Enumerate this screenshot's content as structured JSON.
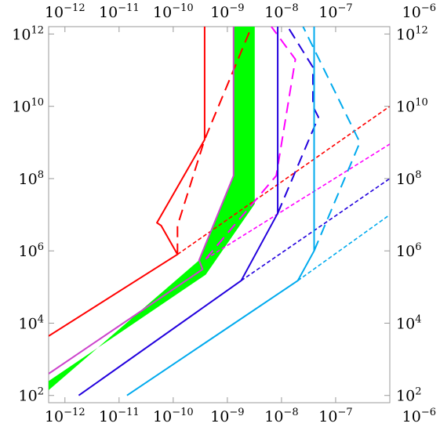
{
  "chart_data": {
    "type": "line",
    "title": "",
    "xlabel": "",
    "ylabel": "",
    "x_scale": "log",
    "y_scale": "log",
    "xlim": [
      5e-13,
      1e-06
    ],
    "ylim": [
      63,
      1600000000000.0
    ],
    "grid": false,
    "legend": "none",
    "x_ticks": [
      {
        "value": 1e-12,
        "base": "10",
        "exp": "−12"
      },
      {
        "value": 1e-11,
        "base": "10",
        "exp": "−11"
      },
      {
        "value": 1e-10,
        "base": "10",
        "exp": "−10"
      },
      {
        "value": 1e-09,
        "base": "10",
        "exp": "−9"
      },
      {
        "value": 1e-08,
        "base": "10",
        "exp": "−8"
      },
      {
        "value": 1e-07,
        "base": "10",
        "exp": "−7"
      },
      {
        "value": 1e-06,
        "base": "10",
        "exp": "−6"
      }
    ],
    "y_ticks": [
      {
        "value": 100.0,
        "base": "10",
        "exp": "2"
      },
      {
        "value": 10000.0,
        "base": "10",
        "exp": "4"
      },
      {
        "value": 1000000.0,
        "base": "10",
        "exp": "6"
      },
      {
        "value": 100000000.0,
        "base": "10",
        "exp": "8"
      },
      {
        "value": 10000000000.0,
        "base": "10",
        "exp": "10"
      },
      {
        "value": 1000000000000.0,
        "base": "10",
        "exp": "12"
      }
    ],
    "bands": [
      {
        "color": "#00ff00",
        "points": [
          [
            5e-13,
            250
          ],
          [
            4e-10,
            220000.0
          ],
          [
            3.2e-09,
            20000000.0
          ],
          [
            3.2e-09,
            1600000000000.0
          ],
          [
            1.3e-09,
            1600000000000.0
          ],
          [
            1.3e-09,
            120000000.0
          ],
          [
            3e-10,
            550000.0
          ],
          [
            5e-13,
            140
          ]
        ]
      }
    ],
    "series": [
      {
        "color": "#ff0000",
        "style": "solid",
        "points": [
          [
            5e-13,
            4400.0
          ],
          [
            1.2e-10,
            800000.0
          ],
          [
            6e-11,
            5000000.0
          ],
          [
            5e-11,
            6000000.0
          ],
          [
            3.8e-10,
            1200000000.0
          ],
          [
            3.8e-10,
            1600000000000.0
          ]
        ]
      },
      {
        "color": "#ff0000",
        "style": "dashed",
        "points": [
          [
            1.2e-10,
            800000.0
          ],
          [
            1.2e-10,
            5000000.0
          ],
          [
            3.8e-10,
            1200000000.0
          ],
          [
            2.8e-09,
            1600000000000.0
          ]
        ]
      },
      {
        "color": "#ff0000",
        "style": "dotted",
        "points": [
          [
            1.2e-10,
            800000.0
          ],
          [
            1e-06,
            10000000000.0
          ]
        ]
      },
      {
        "color": "#cc44cc",
        "style": "solid",
        "points": [
          [
            5e-13,
            400
          ],
          [
            3.5e-10,
            310000.0
          ],
          [
            3e-10,
            550000.0
          ],
          [
            1.3e-09,
            120000000.0
          ],
          [
            1.3e-09,
            1600000000000.0
          ]
        ]
      },
      {
        "color": "#ff00ff",
        "style": "dashed",
        "points": [
          [
            4e-10,
            600000.0
          ],
          [
            8e-09,
            120000000.0
          ],
          [
            1.8e-08,
            200000000000.0
          ],
          [
            6.5e-09,
            1600000000000.0
          ]
        ]
      },
      {
        "color": "#ff00ff",
        "style": "dotted",
        "points": [
          [
            4e-10,
            600000.0
          ],
          [
            1e-06,
            900000000.0
          ]
        ]
      },
      {
        "color": "#2200dd",
        "style": "solid",
        "points": [
          [
            1.8e-12,
            100
          ],
          [
            1.8e-09,
            150000.0
          ],
          [
            8.5e-09,
            11000000.0
          ],
          [
            8.5e-09,
            1600000000000.0
          ]
        ]
      },
      {
        "color": "#2200dd",
        "style": "dashed",
        "points": [
          [
            8.5e-09,
            11000000.0
          ],
          [
            4.8e-08,
            5000000000.0
          ],
          [
            3.8e-08,
            10000000000.0
          ],
          [
            3.8e-08,
            120000000000.0
          ],
          [
            1.3e-08,
            1600000000000.0
          ]
        ]
      },
      {
        "color": "#2200dd",
        "style": "dotted",
        "points": [
          [
            1.8e-09,
            150000.0
          ],
          [
            1e-06,
            100000000.0
          ]
        ]
      },
      {
        "color": "#00aaee",
        "style": "solid",
        "points": [
          [
            1.4e-11,
            100
          ],
          [
            2e-08,
            150000.0
          ],
          [
            4e-08,
            1000000.0
          ],
          [
            4e-08,
            1600000000000.0
          ]
        ]
      },
      {
        "color": "#00aaee",
        "style": "dashed",
        "points": [
          [
            4e-08,
            1000000.0
          ],
          [
            2.8e-07,
            1000000000.0
          ],
          [
            2.5e-08,
            1600000000000.0
          ]
        ]
      },
      {
        "color": "#00aaee",
        "style": "dotted",
        "points": [
          [
            2e-08,
            150000.0
          ],
          [
            1e-06,
            10000000.0
          ]
        ]
      }
    ]
  }
}
